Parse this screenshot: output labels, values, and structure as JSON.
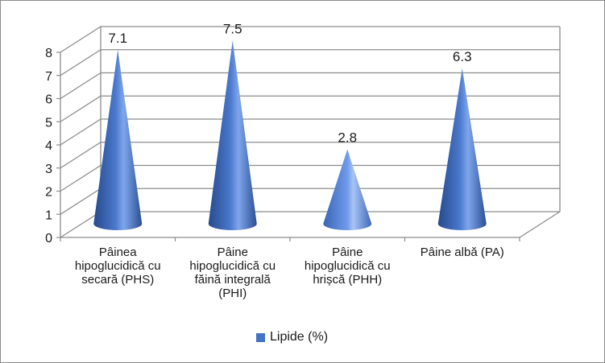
{
  "chart_data": {
    "type": "bar",
    "bar_shape": "3d-cone",
    "title": "",
    "xlabel": "",
    "ylabel": "",
    "ylim": [
      0,
      8
    ],
    "y_ticks": [
      "0",
      "1",
      "2",
      "3",
      "4",
      "5",
      "6",
      "7",
      "8"
    ],
    "grid": true,
    "legend_position": "bottom",
    "categories": [
      "Pâinea hipoglucidică cu secară (PHS)",
      "Pâine hipoglucidică cu făină integrală (PHI)",
      "Pâine hipoglucidică cu hrișcă (PHH)",
      "Pâine albă (PA)"
    ],
    "category_lines": [
      [
        "Pâinea",
        "hipoglucidică cu",
        "secară (PHS)"
      ],
      [
        "Pâine",
        "hipoglucidică cu",
        "făină integrală",
        "(PHI)"
      ],
      [
        "Pâine",
        "hipoglucidică cu",
        "hrișcă (PHH)"
      ],
      [
        "Pâine albă (PA)"
      ]
    ],
    "series": [
      {
        "name": "Lipide (%)",
        "values": [
          7.1,
          7.5,
          2.8,
          6.3
        ],
        "labels": [
          "7.1",
          "7.5",
          "2.8",
          "6.3"
        ],
        "color": "#4472c4"
      }
    ]
  }
}
